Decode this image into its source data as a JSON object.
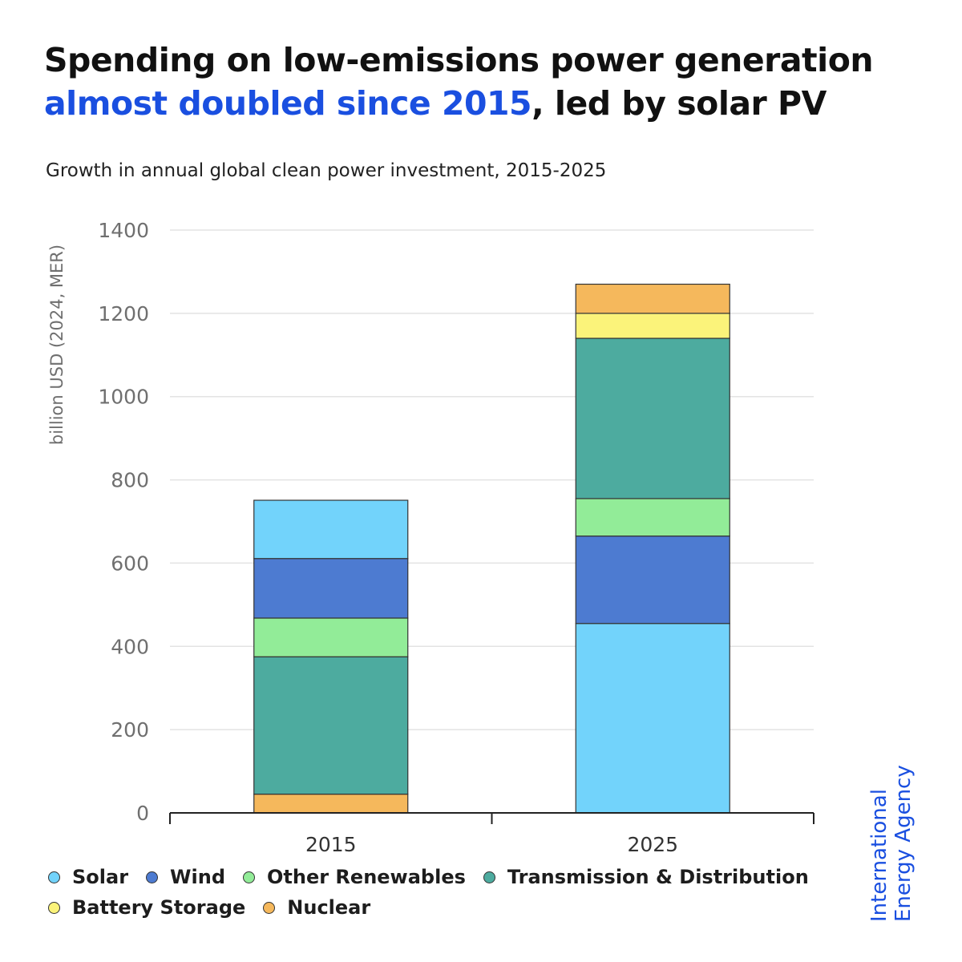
{
  "title": {
    "line1": "Spending on low-emissions power generation",
    "highlight": "almost doubled since 2015",
    "rest": ", led by solar PV",
    "highlight_color": "#1a4fe0"
  },
  "subtitle": "Growth in annual global clean power investment, 2015-2025",
  "logo": {
    "line1": "International",
    "line2": "Energy Agency"
  },
  "chart_data": {
    "type": "bar",
    "stacked": true,
    "categories": [
      "2015",
      "2025"
    ],
    "ylabel": "billion USD (2024, MER)",
    "ylim": [
      0,
      1400
    ],
    "yticks": [
      0,
      200,
      400,
      600,
      800,
      1000,
      1200,
      1400
    ],
    "grid": true,
    "legend_position": "bottom",
    "series_order": {
      "2015": [
        "Nuclear",
        "Transmission & Distribution",
        "Other Renewables",
        "Wind",
        "Solar"
      ],
      "2025": [
        "Solar",
        "Wind",
        "Other Renewables",
        "Transmission & Distribution",
        "Battery Storage",
        "Nuclear"
      ]
    },
    "series": [
      {
        "name": "Solar",
        "color": "#72d3fb",
        "values": [
          140,
          455
        ]
      },
      {
        "name": "Wind",
        "color": "#4d7bd1",
        "values": [
          143,
          210
        ]
      },
      {
        "name": "Other Renewables",
        "color": "#92ec98",
        "values": [
          93,
          90
        ]
      },
      {
        "name": "Transmission & Distribution",
        "color": "#4dab9f",
        "values": [
          330,
          385
        ]
      },
      {
        "name": "Battery Storage",
        "color": "#fbf37a",
        "values": [
          0,
          60
        ]
      },
      {
        "name": "Nuclear",
        "color": "#f5b85c",
        "values": [
          45,
          70
        ]
      }
    ],
    "legend_rows": [
      [
        "Solar",
        "Wind",
        "Other Renewables",
        "Transmission & Distribution"
      ],
      [
        "Battery Storage",
        "Nuclear"
      ]
    ]
  }
}
